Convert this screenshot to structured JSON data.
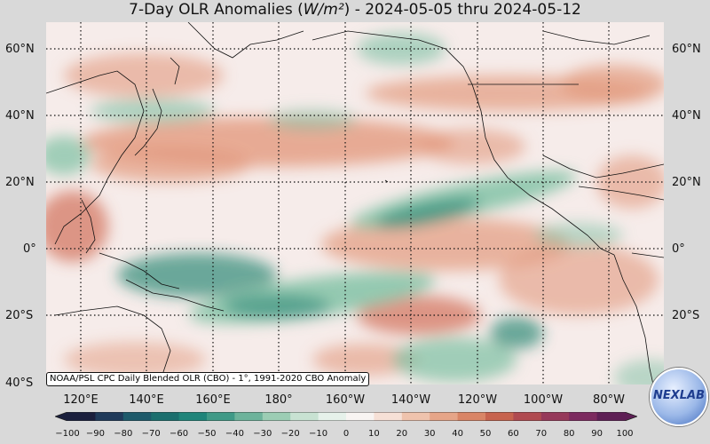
{
  "title": {
    "prefix": "7-Day OLR Anomalies (",
    "unit": "W/m²",
    "suffix": ") - 2024-05-05 thru 2024-05-12"
  },
  "credit": "NOAA/PSL CPC Daily Blended OLR (CBO) - 1°, 1991-2020 CBO Anomaly",
  "logo_text": "NEXLAB",
  "lat_labels": [
    "60°N",
    "40°N",
    "20°N",
    "0°",
    "20°S",
    "40°S"
  ],
  "lon_labels": [
    "120°E",
    "140°E",
    "160°E",
    "180°",
    "160°W",
    "140°W",
    "120°W",
    "100°W",
    "80°W"
  ],
  "colorbar": {
    "ticks": [
      "−100",
      "−90",
      "−80",
      "−70",
      "−60",
      "−50",
      "−40",
      "−30",
      "−20",
      "−10",
      "0",
      "10",
      "20",
      "30",
      "40",
      "50",
      "60",
      "70",
      "80",
      "90",
      "100"
    ],
    "colors": [
      "#1a1f3d",
      "#1f3a5a",
      "#1d5a6b",
      "#1b6f6e",
      "#1f857a",
      "#3f9a87",
      "#6db39b",
      "#9ccdb4",
      "#c8e2d2",
      "#e6f1ea",
      "#f8f4f2",
      "#f6e0d6",
      "#efc3ad",
      "#e6a588",
      "#d98566",
      "#c7634e",
      "#b04a50",
      "#96385a",
      "#7c2a5f",
      "#5e1f55"
    ]
  },
  "map_colors": {
    "ocean_base": "#f6ecea",
    "positive": "#e39a7e",
    "strong_positive": "#d2705a",
    "negative": "#7cc0a3",
    "strong_negative": "#2f8a78",
    "coast": "#111111",
    "grid": "#111111"
  }
}
